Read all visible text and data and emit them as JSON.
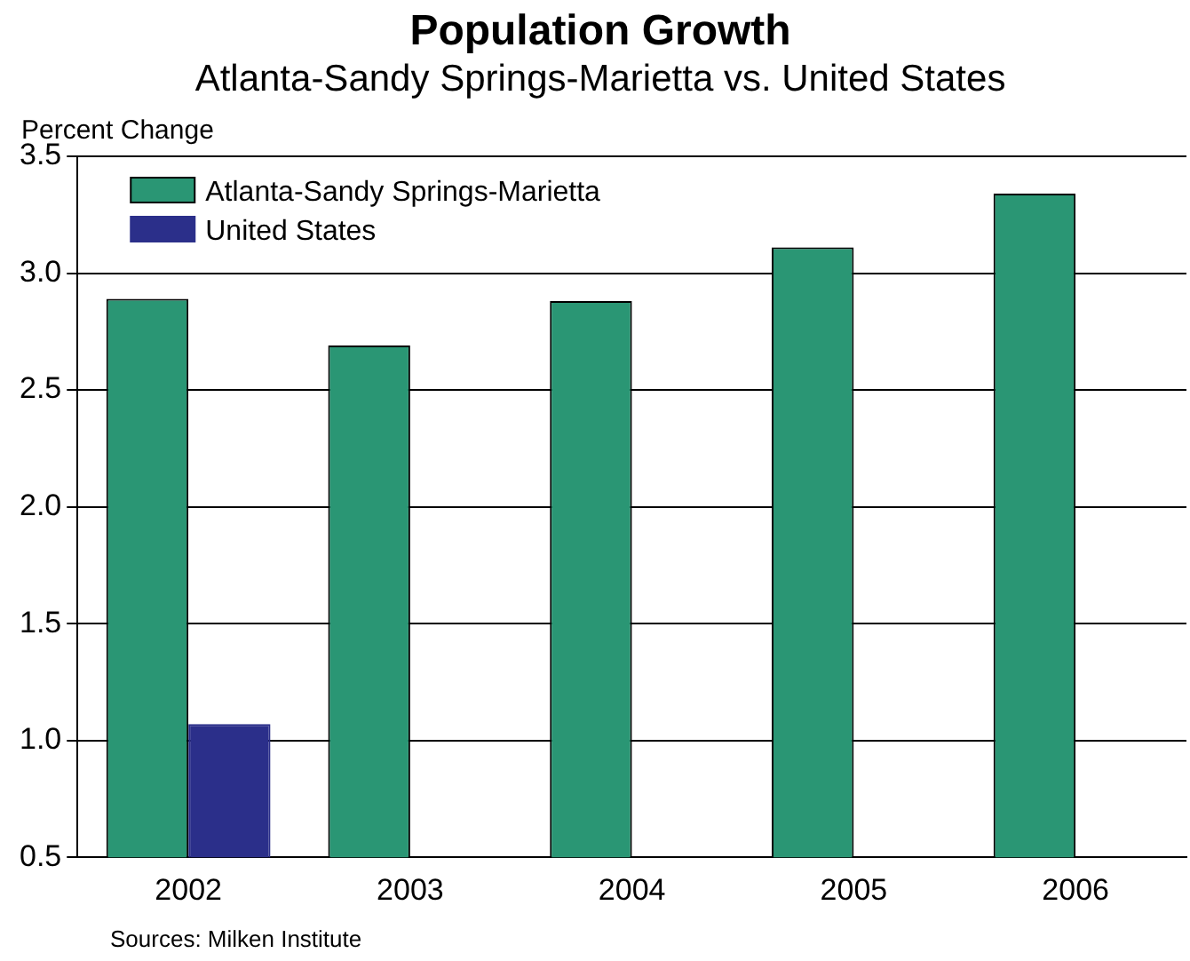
{
  "chart_data": {
    "type": "bar",
    "title": "Population Growth",
    "subtitle": "Atlanta-Sandy Springs-Marietta vs. United States",
    "ylabel": "Percent Change",
    "categories": [
      "2002",
      "2003",
      "2004",
      "2005",
      "2006"
    ],
    "series": [
      {
        "name": "Atlanta-Sandy Springs-Marietta",
        "color": "#2a9674",
        "values": [
          2.89,
          2.69,
          2.88,
          3.11,
          3.34
        ]
      },
      {
        "name": "United States",
        "color": "#2b2f8a",
        "values": [
          1.07,
          null,
          null,
          null,
          null
        ]
      }
    ],
    "ylim": [
      0.5,
      3.5
    ],
    "yticks": [
      {
        "value": 0.5,
        "label": "0.5"
      },
      {
        "value": 1,
        "label": "1.0"
      },
      {
        "value": 1.5,
        "label": "1.5"
      },
      {
        "value": 2,
        "label": "2.0"
      },
      {
        "value": 2.5,
        "label": "2.5"
      },
      {
        "value": 3,
        "label": "3.0"
      },
      {
        "value": 3.5,
        "label": "3.5"
      }
    ],
    "grid": "y",
    "legend": "top left",
    "annotations": [
      "Sources: Milken Institute"
    ]
  }
}
